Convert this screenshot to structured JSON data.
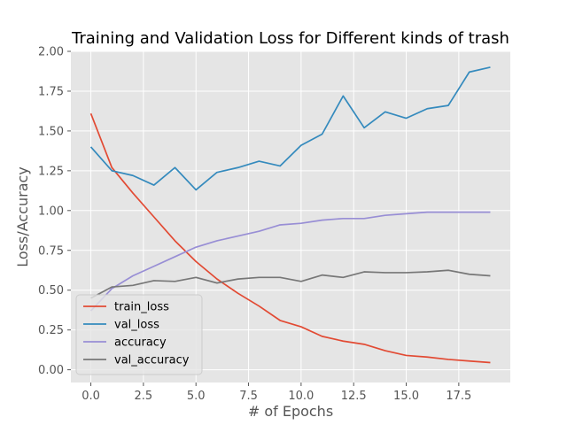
{
  "chart_data": {
    "type": "line",
    "title": "Training and Validation Loss for Different kinds of trash",
    "xlabel": "# of Epochs",
    "ylabel": "Loss/Accuracy",
    "xlim": [
      -0.95,
      19.95
    ],
    "ylim": [
      -0.08,
      2.0
    ],
    "x_ticks": [
      0,
      2.5,
      5,
      7.5,
      10,
      12.5,
      15,
      17.5
    ],
    "x_tick_labels": [
      "0.0",
      "2.5",
      "5.0",
      "7.5",
      "10.0",
      "12.5",
      "15.0",
      "17.5"
    ],
    "y_ticks": [
      0,
      0.25,
      0.5,
      0.75,
      1.0,
      1.25,
      1.5,
      1.75,
      2.0
    ],
    "y_tick_labels": [
      "0.00",
      "0.25",
      "0.50",
      "0.75",
      "1.00",
      "1.25",
      "1.50",
      "1.75",
      "2.00"
    ],
    "grid": true,
    "legend_position": "lower-left",
    "x": [
      0,
      1,
      2,
      3,
      4,
      5,
      6,
      7,
      8,
      9,
      10,
      11,
      12,
      13,
      14,
      15,
      16,
      17,
      18,
      19
    ],
    "series": [
      {
        "name": "train_loss",
        "color": "#E24A33",
        "values": [
          1.61,
          1.27,
          1.11,
          0.96,
          0.81,
          0.68,
          0.57,
          0.48,
          0.4,
          0.31,
          0.27,
          0.21,
          0.18,
          0.16,
          0.12,
          0.09,
          0.08,
          0.065,
          0.055,
          0.045
        ]
      },
      {
        "name": "val_loss",
        "color": "#348ABD",
        "values": [
          1.4,
          1.25,
          1.22,
          1.16,
          1.27,
          1.13,
          1.24,
          1.27,
          1.31,
          1.28,
          1.41,
          1.48,
          1.72,
          1.52,
          1.62,
          1.58,
          1.64,
          1.66,
          1.87,
          1.9
        ]
      },
      {
        "name": "accuracy",
        "color": "#988ED5",
        "values": [
          0.37,
          0.51,
          0.59,
          0.65,
          0.71,
          0.77,
          0.81,
          0.84,
          0.87,
          0.91,
          0.92,
          0.94,
          0.95,
          0.95,
          0.97,
          0.98,
          0.99,
          0.99,
          0.99,
          0.99
        ]
      },
      {
        "name": "val_accuracy",
        "color": "#777777",
        "values": [
          0.45,
          0.52,
          0.53,
          0.56,
          0.555,
          0.58,
          0.545,
          0.57,
          0.58,
          0.58,
          0.555,
          0.595,
          0.58,
          0.615,
          0.61,
          0.61,
          0.615,
          0.625,
          0.6,
          0.59
        ]
      }
    ]
  }
}
